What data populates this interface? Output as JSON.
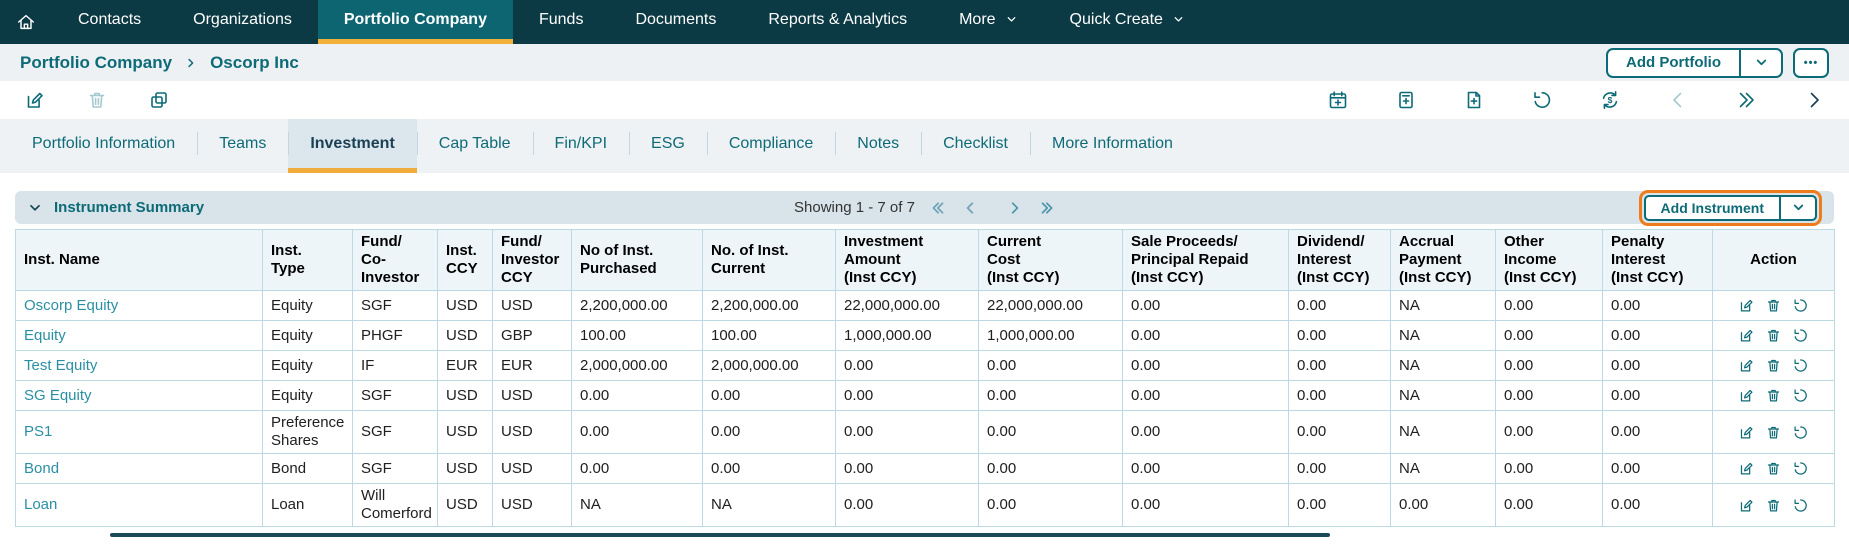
{
  "nav": {
    "items": [
      {
        "label": "Contacts"
      },
      {
        "label": "Organizations"
      },
      {
        "label": "Portfolio Company",
        "active": true
      },
      {
        "label": "Funds"
      },
      {
        "label": "Documents"
      },
      {
        "label": "Reports & Analytics"
      },
      {
        "label": "More",
        "has_dropdown": true
      },
      {
        "label": "Quick Create",
        "has_dropdown": true
      }
    ]
  },
  "breadcrumb": {
    "parent": "Portfolio Company",
    "current": "Oscorp Inc"
  },
  "page_actions": {
    "add_portfolio": "Add Portfolio",
    "more_options": "•••"
  },
  "toolbar": {
    "left_icons": [
      {
        "name": "edit"
      },
      {
        "name": "delete",
        "disabled": true
      },
      {
        "name": "copy"
      }
    ],
    "right_icons": [
      {
        "name": "calendar-add"
      },
      {
        "name": "note-add"
      },
      {
        "name": "document-add"
      },
      {
        "name": "history"
      },
      {
        "name": "currency-refresh"
      },
      {
        "name": "page-previous",
        "disabled": true
      },
      {
        "name": "page-forward-all"
      },
      {
        "name": "page-next",
        "dark": true
      }
    ]
  },
  "tabs": {
    "items": [
      {
        "label": "Portfolio Information"
      },
      {
        "label": "Teams"
      },
      {
        "label": "Investment",
        "active": true
      },
      {
        "label": "Cap Table"
      },
      {
        "label": "Fin/KPI"
      },
      {
        "label": "ESG"
      },
      {
        "label": "Compliance"
      },
      {
        "label": "Notes"
      },
      {
        "label": "Checklist"
      },
      {
        "label": "More Information"
      }
    ]
  },
  "section": {
    "title": "Instrument Summary",
    "showing": "Showing 1 - 7 of 7",
    "pagination": [
      {
        "name": "first-page",
        "muted": true
      },
      {
        "name": "previous-page",
        "muted": true
      },
      {
        "name": "next-page"
      },
      {
        "name": "last-page"
      }
    ],
    "add_button": "Add Instrument"
  },
  "table": {
    "columns": [
      "Inst. Name",
      "Inst.\nType",
      "Fund/\nCo-\nInvestor",
      "Inst.\nCCY",
      "Fund/\nInvestor\nCCY",
      "No of Inst.\nPurchased",
      "No. of Inst.\nCurrent",
      "Investment\nAmount\n(Inst CCY)",
      "Current\nCost\n(Inst CCY)",
      "Sale Proceeds/\nPrincipal Repaid\n(Inst CCY)",
      "Dividend/\nInterest\n(Inst CCY)",
      "Accrual\nPayment\n(Inst CCY)",
      "Other\nIncome\n(Inst CCY)",
      "Penalty\nInterest\n(Inst CCY)",
      "Action"
    ],
    "action_icons": [
      "edit",
      "delete",
      "history"
    ],
    "rows": [
      {
        "cells": [
          "Oscorp Equity",
          "Equity",
          "SGF",
          "USD",
          "USD",
          "2,200,000.00",
          "2,200,000.00",
          "22,000,000.00",
          "22,000,000.00",
          "0.00",
          "0.00",
          "NA",
          "0.00",
          "0.00"
        ]
      },
      {
        "cells": [
          "Equity",
          "Equity",
          "PHGF",
          "USD",
          "GBP",
          "100.00",
          "100.00",
          "1,000,000.00",
          "1,000,000.00",
          "0.00",
          "0.00",
          "NA",
          "0.00",
          "0.00"
        ]
      },
      {
        "cells": [
          "Test Equity",
          "Equity",
          "IF",
          "EUR",
          "EUR",
          "2,000,000.00",
          "2,000,000.00",
          "0.00",
          "0.00",
          "0.00",
          "0.00",
          "NA",
          "0.00",
          "0.00"
        ]
      },
      {
        "cells": [
          "SG Equity",
          "Equity",
          "SGF",
          "USD",
          "USD",
          "0.00",
          "0.00",
          "0.00",
          "0.00",
          "0.00",
          "0.00",
          "NA",
          "0.00",
          "0.00"
        ]
      },
      {
        "cells": [
          "PS1",
          "Preference Shares",
          "SGF",
          "USD",
          "USD",
          "0.00",
          "0.00",
          "0.00",
          "0.00",
          "0.00",
          "0.00",
          "NA",
          "0.00",
          "0.00"
        ]
      },
      {
        "cells": [
          "Bond",
          "Bond",
          "SGF",
          "USD",
          "USD",
          "0.00",
          "0.00",
          "0.00",
          "0.00",
          "0.00",
          "0.00",
          "NA",
          "0.00",
          "0.00"
        ]
      },
      {
        "cells": [
          "Loan",
          "Loan",
          "Will Comerford",
          "USD",
          "USD",
          "NA",
          "NA",
          "0.00",
          "0.00",
          "0.00",
          "0.00",
          "0.00",
          "0.00",
          "0.00"
        ]
      }
    ]
  },
  "colors": {
    "navbar_bg": "#0b3944",
    "nav_active_bg": "#0c6570",
    "amber_underline": "#f0b03a",
    "tab_underline": "#f0ab3c",
    "highlight_orange": "#ee7c1b",
    "teal_primary": "#0d6b77",
    "link_teal": "#2b8fa3",
    "table_border": "#bcd9e4",
    "section_header_bg": "#d9e4ea",
    "table_header_bg": "#edf5f9"
  }
}
